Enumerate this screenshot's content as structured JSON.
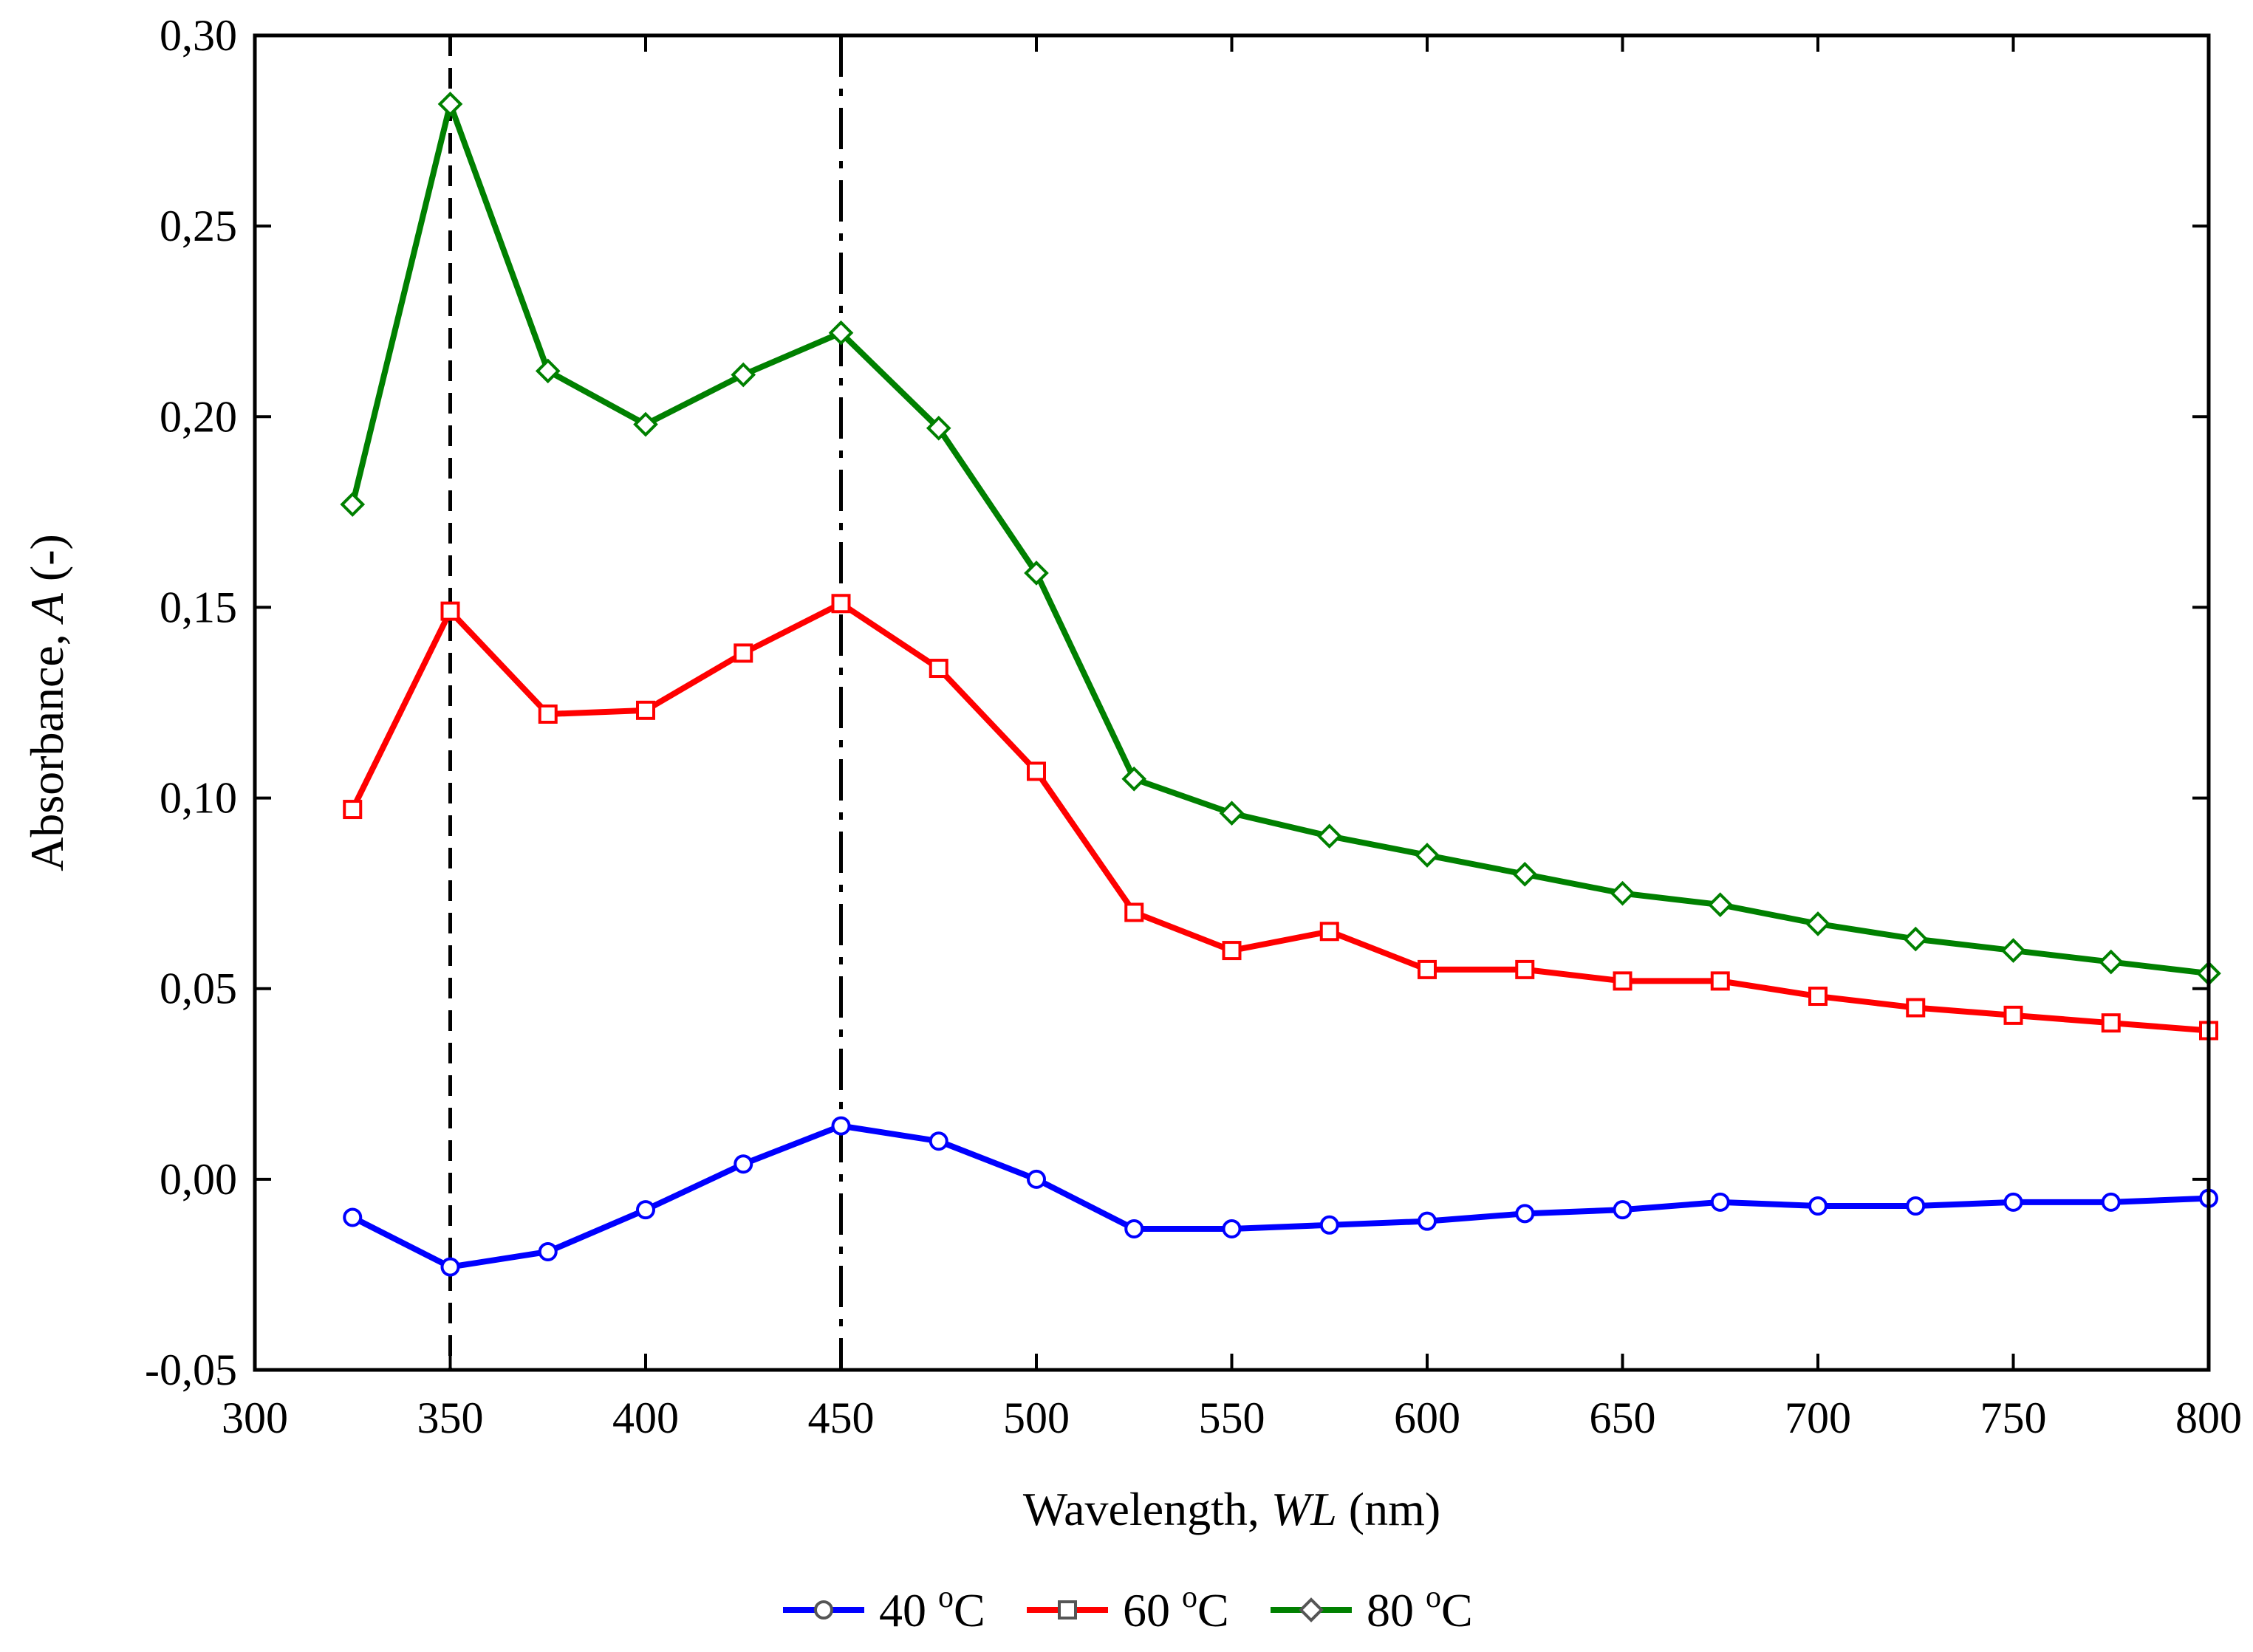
{
  "chart_data": {
    "type": "line",
    "title": "",
    "xlabel_main": "Wavelength, ",
    "xlabel_italic": "WL",
    "xlabel_unit": " (nm)",
    "ylabel_main": "Absorbance, ",
    "ylabel_italic": "A",
    "ylabel_unit": " (-)",
    "xlim": [
      300,
      800
    ],
    "ylim": [
      -0.05,
      0.3
    ],
    "x_ticks": [
      300,
      350,
      400,
      450,
      500,
      550,
      600,
      650,
      700,
      750,
      800
    ],
    "x_tick_labels": [
      "300",
      "350",
      "400",
      "450",
      "500",
      "550",
      "600",
      "650",
      "700",
      "750",
      "800"
    ],
    "y_ticks": [
      -0.05,
      0.0,
      0.05,
      0.1,
      0.15,
      0.2,
      0.25,
      0.3
    ],
    "y_tick_labels": [
      "-0,05",
      "0,00",
      "0,05",
      "0,10",
      "0,15",
      "0,20",
      "0,25",
      "0,30"
    ],
    "grid": false,
    "reference_lines_x": [
      350,
      450
    ],
    "x": [
      325,
      350,
      375,
      400,
      425,
      450,
      475,
      500,
      525,
      550,
      575,
      600,
      625,
      650,
      675,
      700,
      725,
      750,
      775,
      800
    ],
    "series": [
      {
        "name": "40 °C",
        "label_main": "40 ",
        "label_sup": "o",
        "label_tail": "C",
        "color": "#0000ff",
        "marker": "circle",
        "values": [
          -0.01,
          -0.023,
          -0.019,
          -0.008,
          0.004,
          0.014,
          0.01,
          0.0,
          -0.013,
          -0.013,
          -0.012,
          -0.011,
          -0.009,
          -0.008,
          -0.006,
          -0.007,
          -0.007,
          -0.006,
          -0.006,
          -0.005
        ]
      },
      {
        "name": "60 °C",
        "label_main": "60 ",
        "label_sup": "o",
        "label_tail": "C",
        "color": "#ff0000",
        "marker": "square",
        "values": [
          0.097,
          0.149,
          0.122,
          0.123,
          0.138,
          0.151,
          0.134,
          0.107,
          0.07,
          0.06,
          0.065,
          0.055,
          0.055,
          0.052,
          0.052,
          0.048,
          0.045,
          0.043,
          0.041,
          0.039
        ]
      },
      {
        "name": "80 °C",
        "label_main": "80 ",
        "label_sup": "o",
        "label_tail": "C",
        "color": "#008000",
        "marker": "diamond",
        "values": [
          0.177,
          0.282,
          0.212,
          0.198,
          0.211,
          0.222,
          0.197,
          0.159,
          0.105,
          0.096,
          0.09,
          0.085,
          0.08,
          0.075,
          0.072,
          0.067,
          0.063,
          0.06,
          0.057,
          0.054
        ]
      }
    ],
    "legend_position": "bottom-center"
  }
}
